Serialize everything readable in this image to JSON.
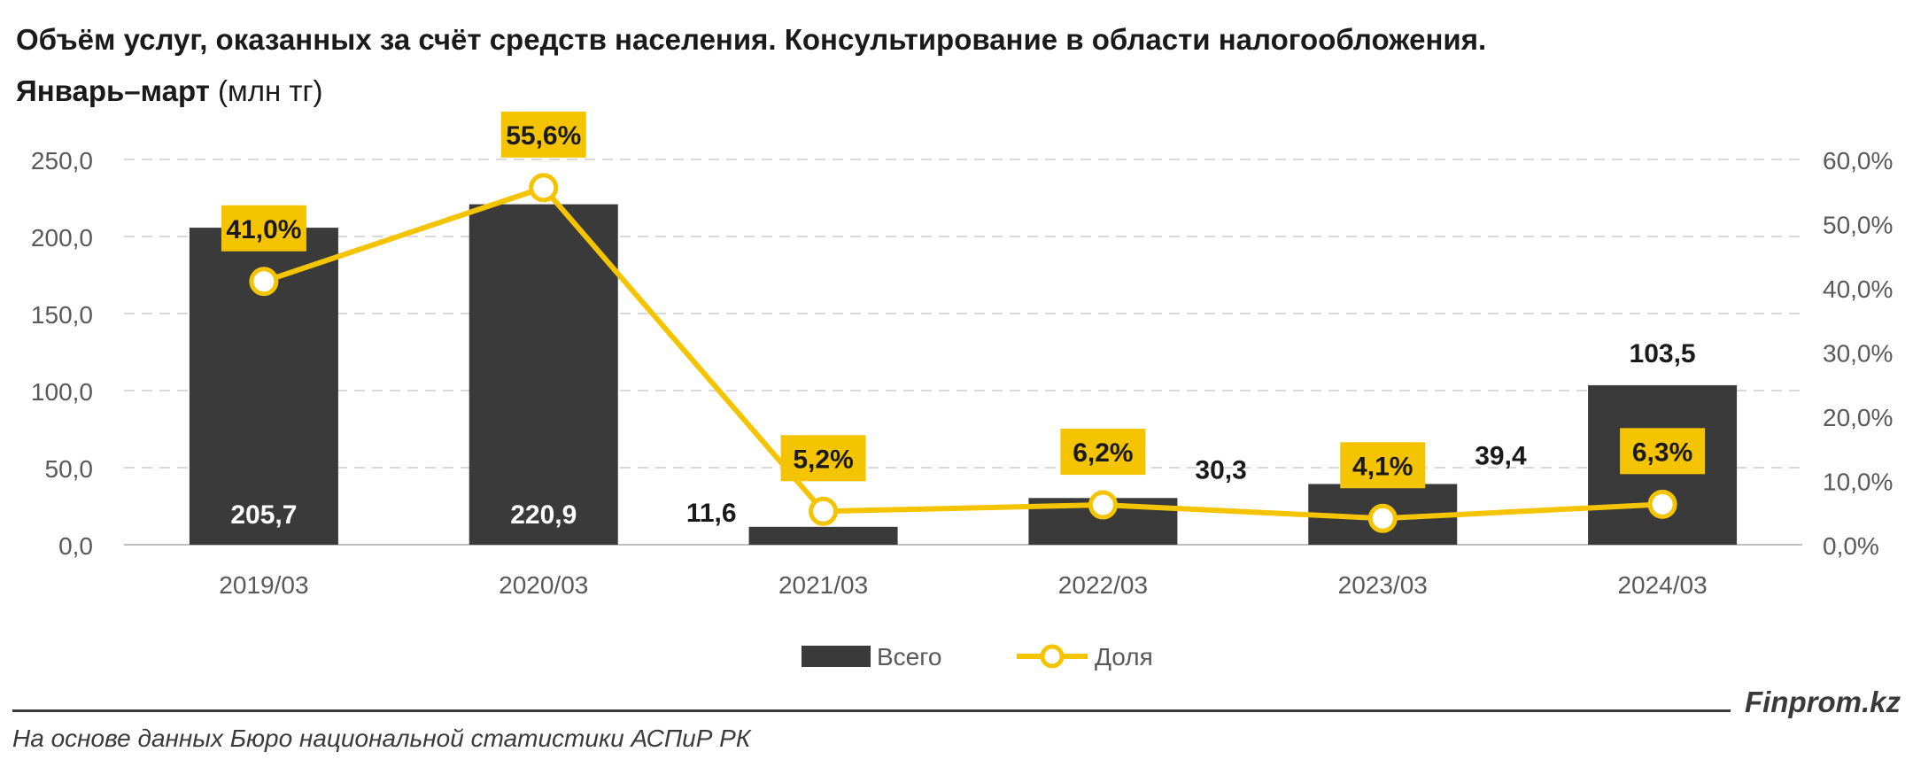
{
  "title": {
    "line1": "Объём услуг, оказанных за счёт средств населения. Консультирование в области налогообложения.",
    "line2_bold": "Январь–март",
    "line2_rest": " (млн тг)"
  },
  "chart_data": {
    "type": "bar+line",
    "categories": [
      "2019/03",
      "2020/03",
      "2021/03",
      "2022/03",
      "2023/03",
      "2024/03"
    ],
    "series": [
      {
        "name": "Всего",
        "type": "bar",
        "axis": "left",
        "color": "#3a3a3a",
        "values": [
          205.7,
          220.9,
          11.6,
          30.3,
          39.4,
          103.5
        ],
        "labels": [
          "205,7",
          "220,9",
          "11,6",
          "30,3",
          "39,4",
          "103,5"
        ]
      },
      {
        "name": "Доля",
        "type": "line",
        "axis": "right",
        "color": "#f5c400",
        "values": [
          41.0,
          55.6,
          5.2,
          6.2,
          4.1,
          6.3
        ],
        "labels": [
          "41,0%",
          "55,6%",
          "5,2%",
          "6,2%",
          "4,1%",
          "6,3%"
        ]
      }
    ],
    "y_left": {
      "min": 0,
      "max": 250,
      "ticks": [
        0,
        50,
        100,
        150,
        200,
        250
      ],
      "tick_labels": [
        "0,0",
        "50,0",
        "100,0",
        "150,0",
        "200,0",
        "250,0"
      ]
    },
    "y_right": {
      "min": 0,
      "max": 60,
      "ticks": [
        0,
        10,
        20,
        30,
        40,
        50,
        60
      ],
      "tick_labels": [
        "0,0%",
        "10,0%",
        "20,0%",
        "30,0%",
        "40,0%",
        "50,0%",
        "60,0%"
      ]
    },
    "grid": true,
    "legend_position": "bottom"
  },
  "footer": {
    "brand": "Finprom.kz",
    "source": "На основе данных Бюро национальной статистики АСПиР РК"
  },
  "colors": {
    "bar": "#3a3a3a",
    "line": "#f5c400",
    "grid": "#d9d9d9",
    "axis_text": "#595959"
  }
}
